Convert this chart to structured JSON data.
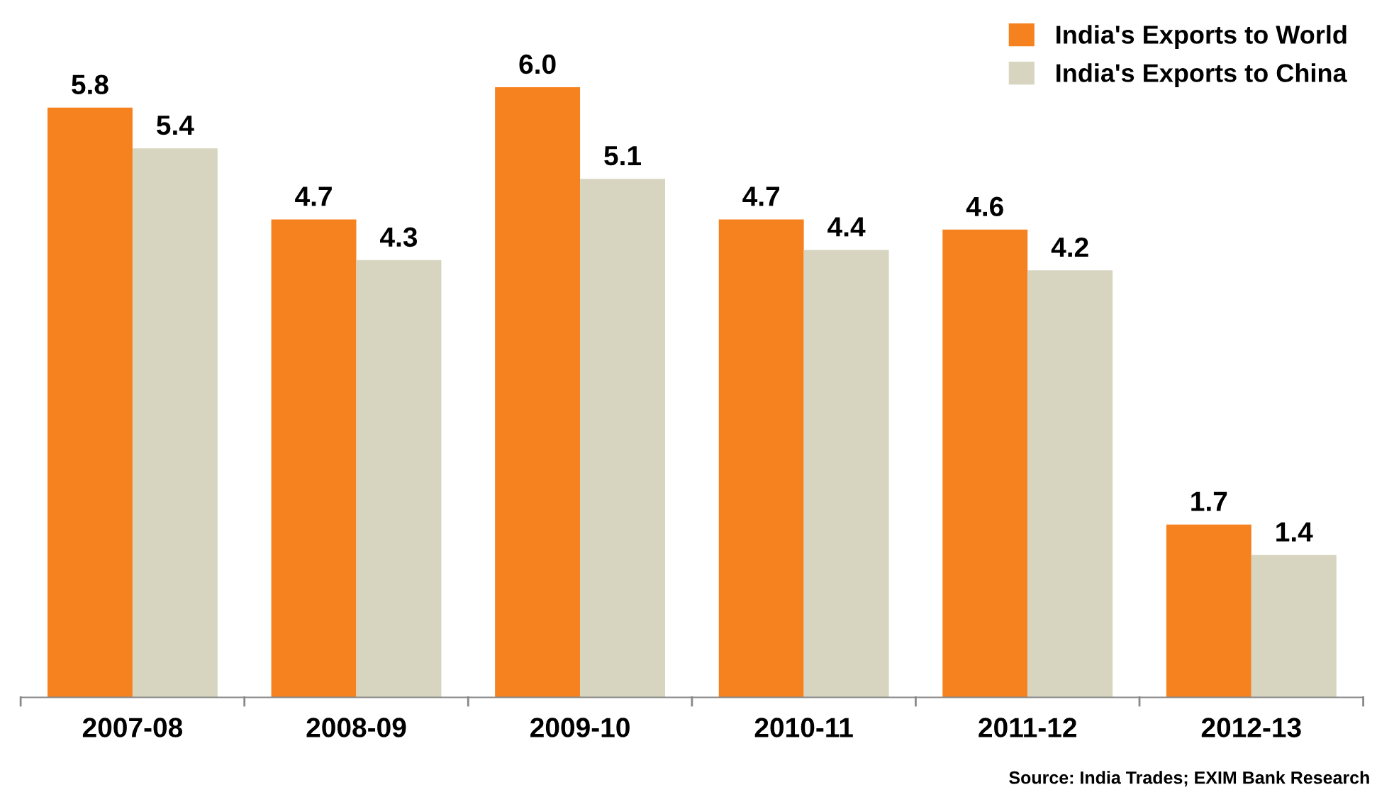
{
  "chart_data": {
    "type": "bar",
    "categories": [
      "2007-08",
      "2008-09",
      "2009-10",
      "2010-11",
      "2011-12",
      "2012-13"
    ],
    "series": [
      {
        "name": "India's Exports to World",
        "color": "#f5821f",
        "values": [
          5.8,
          4.7,
          6.0,
          4.7,
          4.6,
          1.7
        ],
        "value_labels": [
          "5.8",
          "4.7",
          "6.0",
          "4.7",
          "4.6",
          "1.7"
        ]
      },
      {
        "name": "India's Exports to China",
        "color": "#d7d4bf",
        "values": [
          5.4,
          4.3,
          5.1,
          4.4,
          4.2,
          1.4
        ],
        "value_labels": [
          "5.4",
          "4.3",
          "5.1",
          "4.4",
          "4.2",
          "1.4"
        ]
      }
    ],
    "legend": "top right",
    "grid": false,
    "annotations": [
      "Source: India Trades; EXIM Bank Research"
    ]
  }
}
